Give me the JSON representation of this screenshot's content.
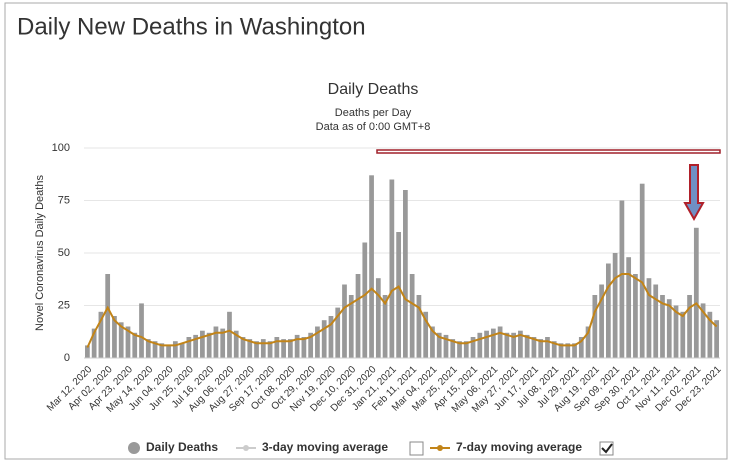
{
  "header": "Daily New Deaths in Washington",
  "chart_data": {
    "type": "bar",
    "title": "Daily Deaths",
    "subtitle": [
      "Deaths per Day",
      "Data as of 0:00 GMT+8"
    ],
    "ylabel": "Novel Coronavirus Daily Deaths",
    "categories": [
      "Mar 12, 2020",
      null,
      null,
      "Apr 02, 2020",
      null,
      null,
      "Apr 23, 2020",
      null,
      null,
      "May 14, 2020",
      null,
      null,
      "Jun 04, 2020",
      null,
      null,
      "Jun 25, 2020",
      null,
      null,
      "Jul 16, 2020",
      null,
      null,
      "Aug 06, 2020",
      null,
      null,
      "Aug 27, 2020",
      null,
      null,
      "Sep 17, 2020",
      null,
      null,
      "Oct 08, 2020",
      null,
      null,
      "Oct 29, 2020",
      null,
      null,
      "Nov 19, 2020",
      null,
      null,
      "Dec 10, 2020",
      null,
      null,
      "Dec 31, 2020",
      null,
      null,
      "Jan 21, 2021",
      null,
      null,
      "Feb 11, 2021",
      null,
      null,
      "Mar 04, 2021",
      null,
      null,
      "Mar 25, 2021",
      null,
      null,
      "Apr 15, 2021",
      null,
      null,
      "May 06, 2021",
      null,
      null,
      "May 27, 2021",
      null,
      null,
      "Jun 17, 2021",
      null,
      null,
      "Jul 08, 2021",
      null,
      null,
      "Jul 29, 2021",
      null,
      null,
      "Aug 19, 2021",
      null,
      null,
      "Sep 09, 2021",
      null,
      null,
      "Sep 30, 2021",
      null,
      null,
      "Oct 21, 2021",
      null,
      null,
      "Nov 11, 2021",
      null,
      null,
      "Dec 02, 2021",
      null,
      null,
      "Dec 23, 2021"
    ],
    "series": [
      {
        "name": "Daily Deaths",
        "color": "#999999",
        "values": [
          6,
          14,
          22,
          40,
          20,
          17,
          15,
          12,
          26,
          9,
          8,
          7,
          6,
          8,
          7,
          10,
          11,
          13,
          12,
          15,
          14,
          22,
          13,
          10,
          9,
          8,
          9,
          8,
          10,
          9,
          9,
          11,
          10,
          12,
          15,
          18,
          20,
          24,
          35,
          30,
          40,
          55,
          87,
          38,
          30,
          85,
          60,
          80,
          40,
          30,
          22,
          15,
          12,
          11,
          9,
          8,
          8,
          10,
          12,
          13,
          14,
          15,
          12,
          12,
          13,
          11,
          10,
          9,
          10,
          8,
          7,
          7,
          7,
          10,
          15,
          30,
          35,
          45,
          50,
          75,
          48,
          40,
          83,
          38,
          35,
          30,
          28,
          25,
          22,
          30,
          62,
          26,
          22,
          18
        ]
      },
      {
        "name": "7-day moving average",
        "color": "#c28418",
        "type": "line",
        "values": [
          5,
          12,
          18,
          24,
          18,
          15,
          13,
          11,
          10,
          8,
          7,
          6,
          6,
          6,
          7,
          8,
          9,
          10,
          11,
          12,
          12,
          13,
          11,
          9,
          8,
          7,
          7,
          7,
          8,
          8,
          8,
          9,
          9,
          10,
          12,
          14,
          16,
          20,
          24,
          26,
          28,
          30,
          33,
          30,
          26,
          32,
          34,
          28,
          26,
          24,
          18,
          13,
          10,
          9,
          8,
          7,
          7,
          8,
          9,
          10,
          11,
          12,
          11,
          10,
          11,
          10,
          9,
          8,
          8,
          7,
          6,
          6,
          6,
          8,
          12,
          22,
          28,
          34,
          38,
          40,
          40,
          38,
          36,
          30,
          28,
          26,
          25,
          22,
          20,
          24,
          26,
          22,
          18,
          15
        ]
      }
    ],
    "hidden_series": {
      "name": "3-day moving average",
      "color": "#cccccc"
    },
    "ylim": [
      0,
      100
    ],
    "yticks": [
      0,
      25,
      50,
      75,
      100
    ],
    "grid": true
  }
}
